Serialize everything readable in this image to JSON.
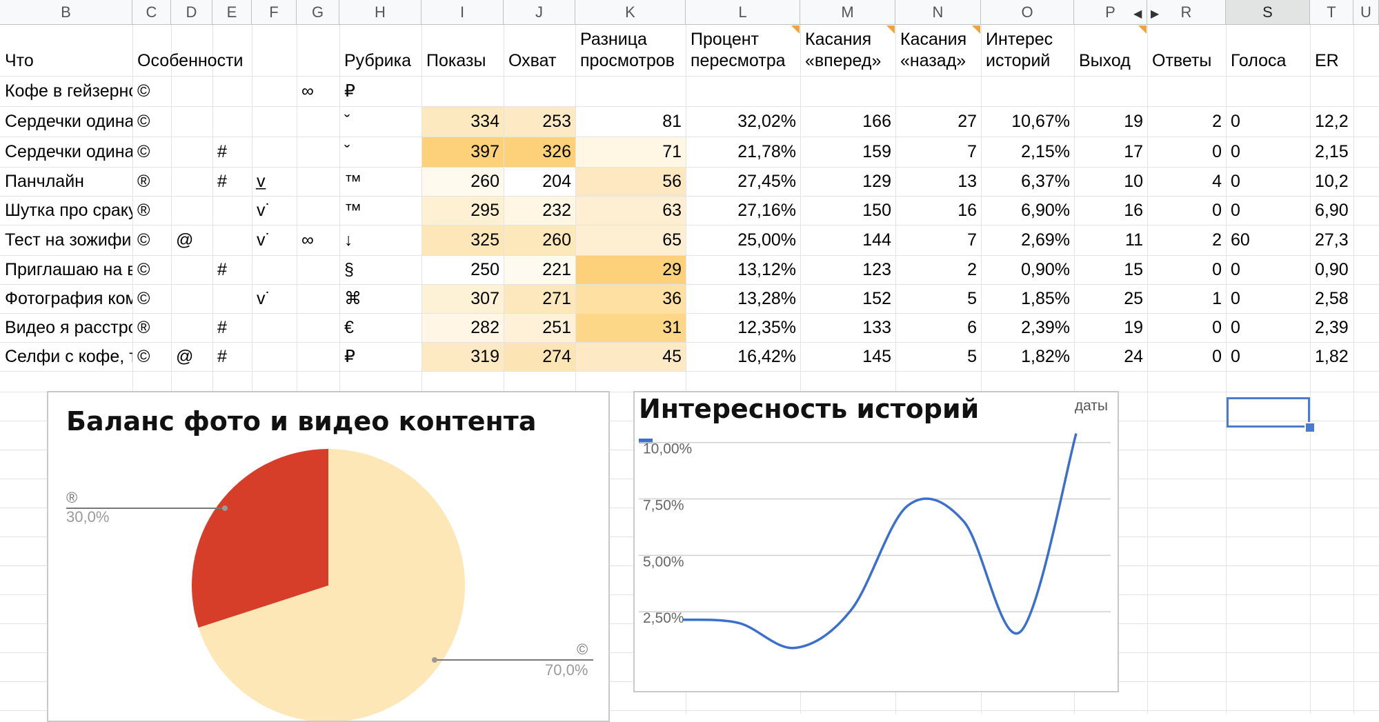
{
  "columns": [
    "B",
    "C",
    "D",
    "E",
    "F",
    "G",
    "H",
    "I",
    "J",
    "K",
    "L",
    "M",
    "N",
    "O",
    "P",
    "R",
    "S",
    "T",
    "U"
  ],
  "header": {
    "what": "Что",
    "features": "Особенности",
    "rubric": "Рубрика",
    "impressions": "Показы",
    "reach": "Охват",
    "views_diff": "Разница просмотров",
    "rewatch_pct": "Процент пересмотра",
    "taps_forward": "Касания «вперед»",
    "taps_back": "Касания «назад»",
    "story_interest": "Интерес историй",
    "exits": "Выход",
    "replies": "Ответы",
    "votes": "Голоса",
    "er": "ER"
  },
  "rows": [
    {
      "what": "Кофе в гейзерно",
      "c": "©",
      "d": "",
      "e": "",
      "f": "",
      "g": "∞",
      "h": "₽",
      "i": "",
      "j": "",
      "k": "",
      "l": "",
      "m": "",
      "n": "",
      "o": "",
      "p": "",
      "r": "",
      "s": "",
      "t": ""
    },
    {
      "what": "Сердечки одина",
      "c": "©",
      "d": "",
      "e": "",
      "f": "",
      "g": "",
      "h": "ˇ",
      "i": "334",
      "j": "253",
      "k": "81",
      "l": "32,02%",
      "m": "166",
      "n": "27",
      "o": "10,67%",
      "p": "19",
      "r": "2",
      "s": "0",
      "t": "12,2"
    },
    {
      "what": "Сердечки одина",
      "c": "©",
      "d": "",
      "e": "#",
      "f": "",
      "g": "",
      "h": "ˇ",
      "i": "397",
      "j": "326",
      "k": "71",
      "l": "21,78%",
      "m": "159",
      "n": "7",
      "o": "2,15%",
      "p": "17",
      "r": "0",
      "s": "0",
      "t": "2,15"
    },
    {
      "what": "Панчлайн",
      "c": "®",
      "d": "",
      "e": "#",
      "f": "v̲",
      "g": "",
      "h": "™",
      "i": "260",
      "j": "204",
      "k": "56",
      "l": "27,45%",
      "m": "129",
      "n": "13",
      "o": "6,37%",
      "p": "10",
      "r": "4",
      "s": "0",
      "t": "10,2"
    },
    {
      "what": "Шутка про сраку",
      "c": "®",
      "d": "",
      "e": "",
      "f": "v˙",
      "g": "",
      "h": "™",
      "i": "295",
      "j": "232",
      "k": "63",
      "l": "27,16%",
      "m": "150",
      "n": "16",
      "o": "6,90%",
      "p": "16",
      "r": "0",
      "s": "0",
      "t": "6,90"
    },
    {
      "what": "Тест на зожифи",
      "c": "©",
      "d": "@",
      "e": "",
      "f": "v˙",
      "g": "∞",
      "h": "↓",
      "i": "325",
      "j": "260",
      "k": "65",
      "l": "25,00%",
      "m": "144",
      "n": "7",
      "o": "2,69%",
      "p": "11",
      "r": "2",
      "s": "60",
      "t": "27,3"
    },
    {
      "what": "Приглашаю на в",
      "c": "©",
      "d": "",
      "e": "#",
      "f": "",
      "g": "",
      "h": "§",
      "i": "250",
      "j": "221",
      "k": "29",
      "l": "13,12%",
      "m": "123",
      "n": "2",
      "o": "0,90%",
      "p": "15",
      "r": "0",
      "s": "0",
      "t": "0,90"
    },
    {
      "what": "Фотография ком",
      "c": "©",
      "d": "",
      "e": "",
      "f": "v˙",
      "g": "",
      "h": "⌘",
      "i": "307",
      "j": "271",
      "k": "36",
      "l": "13,28%",
      "m": "152",
      "n": "5",
      "o": "1,85%",
      "p": "25",
      "r": "1",
      "s": "0",
      "t": "2,58"
    },
    {
      "what": "Видео я расстро",
      "c": "®",
      "d": "",
      "e": "#",
      "f": "",
      "g": "",
      "h": "€",
      "i": "282",
      "j": "251",
      "k": "31",
      "l": "12,35%",
      "m": "133",
      "n": "6",
      "o": "2,39%",
      "p": "19",
      "r": "0",
      "s": "0",
      "t": "2,39"
    },
    {
      "what": "Селфи с кофе, т",
      "c": "©",
      "d": "@",
      "e": "#",
      "f": "",
      "g": "",
      "h": "₽",
      "i": "319",
      "j": "274",
      "k": "45",
      "l": "16,42%",
      "m": "145",
      "n": "5",
      "o": "1,82%",
      "p": "24",
      "r": "0",
      "s": "0",
      "t": "1,82"
    }
  ],
  "heat_colors": {
    "i": [
      "",
      "#fde9c0",
      "#fdd17a",
      "#fff9ee",
      "#fef0d2",
      "#fde7b8",
      "#ffffff",
      "#fef2d6",
      "#fff6e6",
      "#fde9c2"
    ],
    "j": [
      "",
      "#fdeac4",
      "#fdd17a",
      "#ffffff",
      "#fff6e4",
      "#fde8bc",
      "#fffaf0",
      "#fde8bd",
      "#fff1d7",
      "#fde4b4"
    ],
    "k": [
      "",
      "#ffffff",
      "#fff6e3",
      "#fee8c1",
      "#feefd2",
      "#feefd3",
      "#fdd17a",
      "#fde0a2",
      "#fdd788",
      "#fdeac4"
    ]
  },
  "pie_chart": {
    "title": "Баланс фото и видео контента",
    "slices": [
      {
        "label": "©",
        "percent_text": "70,0%",
        "value": 70,
        "color": "#fde7b7"
      },
      {
        "label": "®",
        "percent_text": "30,0%",
        "value": 30,
        "color": "#d63e2a"
      }
    ]
  },
  "chart_data": {
    "type": "line",
    "title": "Интересность историй",
    "xlabel": "даты",
    "ylabel": "",
    "y_ticks": [
      "10,00%",
      "7,50%",
      "5,00%",
      "2,50%"
    ],
    "ylim": [
      0,
      11
    ],
    "series": [
      {
        "color": "#3a6fd0",
        "values": [
          2.15,
          2.0,
          0.9,
          2.6,
          7.2,
          6.5,
          1.6,
          10.4
        ]
      }
    ]
  }
}
